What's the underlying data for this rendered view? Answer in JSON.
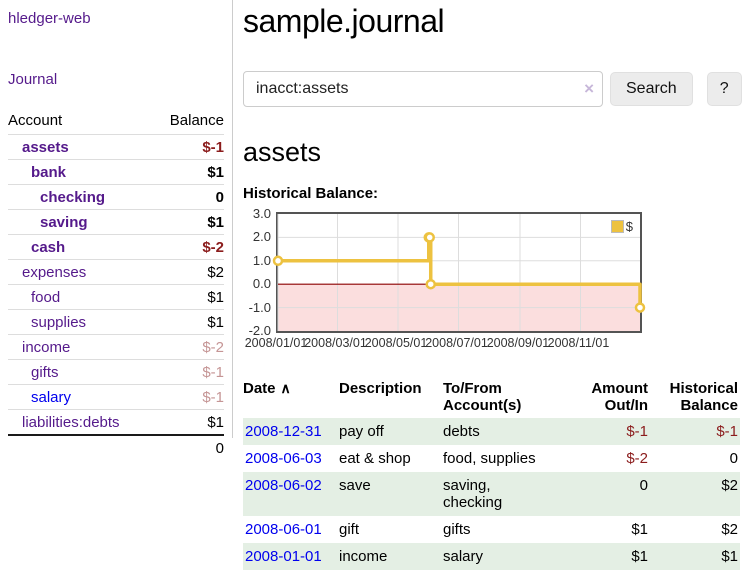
{
  "app": {
    "brand": "hledger-web",
    "nav": {
      "journal": "Journal"
    }
  },
  "colors": {
    "link_purple": "#551a8b",
    "link_blue": "#0000ee",
    "negative_dark": "#8b1c1c",
    "negative_light": "#c59595",
    "row_stripe_green": "#e4efe4",
    "series_gold": "#edc240"
  },
  "sidebar": {
    "headers": {
      "account": "Account",
      "balance": "Balance"
    },
    "accounts": [
      {
        "name": "assets",
        "balance": "$-1",
        "level": 1,
        "bold": true,
        "balance_class": "neg-dark",
        "unvisited": false
      },
      {
        "name": "bank",
        "balance": "$1",
        "level": 2,
        "bold": true,
        "balance_class": "",
        "unvisited": false
      },
      {
        "name": "checking",
        "balance": "0",
        "level": 3,
        "bold": true,
        "balance_class": "",
        "unvisited": false
      },
      {
        "name": "saving",
        "balance": "$1",
        "level": 3,
        "bold": true,
        "balance_class": "",
        "unvisited": false
      },
      {
        "name": "cash",
        "balance": "$-2",
        "level": 2,
        "bold": true,
        "balance_class": "neg-dark",
        "unvisited": false
      },
      {
        "name": "expenses",
        "balance": "$2",
        "level": 1,
        "bold": false,
        "balance_class": "",
        "unvisited": false
      },
      {
        "name": "food",
        "balance": "$1",
        "level": 2,
        "bold": false,
        "balance_class": "",
        "unvisited": false
      },
      {
        "name": "supplies",
        "balance": "$1",
        "level": 2,
        "bold": false,
        "balance_class": "",
        "unvisited": false
      },
      {
        "name": "income",
        "balance": "$-2",
        "level": 1,
        "bold": false,
        "balance_class": "neg-light",
        "unvisited": false
      },
      {
        "name": "gifts",
        "balance": "$-1",
        "level": 2,
        "bold": false,
        "balance_class": "neg-light",
        "unvisited": false
      },
      {
        "name": "salary",
        "balance": "$-1",
        "level": 2,
        "bold": false,
        "balance_class": "neg-light",
        "unvisited": true
      },
      {
        "name": "liabilities:debts",
        "balance": "$1",
        "level": 1,
        "bold": false,
        "balance_class": "",
        "unvisited": false
      }
    ],
    "total": "0"
  },
  "main": {
    "title": "sample.journal",
    "search": {
      "value": "inacct:assets",
      "clear_icon": "×",
      "button_label": "Search",
      "help_label": "?"
    },
    "account_heading": "assets",
    "chart_heading": "Historical Balance:"
  },
  "chart_data": {
    "type": "line",
    "step": true,
    "title": "Historical Balance:",
    "series": [
      {
        "name": "$",
        "color": "#edc240",
        "points": [
          {
            "date": "2008-01-01",
            "value": 1
          },
          {
            "date": "2008-06-01",
            "value": 2
          },
          {
            "date": "2008-06-02",
            "value": 2
          },
          {
            "date": "2008-06-03",
            "value": 0
          },
          {
            "date": "2008-12-31",
            "value": -1
          }
        ]
      }
    ],
    "xlim": [
      "2008-01-01",
      "2008-12-31"
    ],
    "ylim": [
      -2,
      3
    ],
    "yticks": [
      3.0,
      2.0,
      1.0,
      0.0,
      -1.0,
      -2.0
    ],
    "xtick_labels": [
      "2008/01/01",
      "2008/03/01",
      "2008/05/01",
      "2008/07/01",
      "2008/09/01",
      "2008/11/01"
    ],
    "grid": true,
    "legend": {
      "label": "$",
      "position": "top-right"
    },
    "colors": {
      "negative_fill": "#fbdede",
      "zero_line": "#8b0000",
      "grid": "#dddddd",
      "border": "#545454"
    }
  },
  "register": {
    "headers": {
      "date": "Date",
      "sort_icon": "∧",
      "description": "Description",
      "accounts": "To/From Account(s)",
      "amount": "Amount Out/In",
      "balance": "Historical Balance"
    },
    "rows": [
      {
        "date": "2008-12-31",
        "description": "pay off",
        "accounts": "debts",
        "amount": "$-1",
        "amount_class": "neg",
        "balance": "$-1",
        "balance_class": "neg"
      },
      {
        "date": "2008-06-03",
        "description": "eat & shop",
        "accounts": "food, supplies",
        "amount": "$-2",
        "amount_class": "neg",
        "balance": "0",
        "balance_class": ""
      },
      {
        "date": "2008-06-02",
        "description": "save",
        "accounts": "saving,\nchecking",
        "amount": "0",
        "amount_class": "",
        "balance": "$2",
        "balance_class": ""
      },
      {
        "date": "2008-06-01",
        "description": "gift",
        "accounts": "gifts",
        "amount": "$1",
        "amount_class": "",
        "balance": "$2",
        "balance_class": ""
      },
      {
        "date": "2008-01-01",
        "description": "income",
        "accounts": "salary",
        "amount": "$1",
        "amount_class": "",
        "balance": "$1",
        "balance_class": ""
      }
    ]
  }
}
